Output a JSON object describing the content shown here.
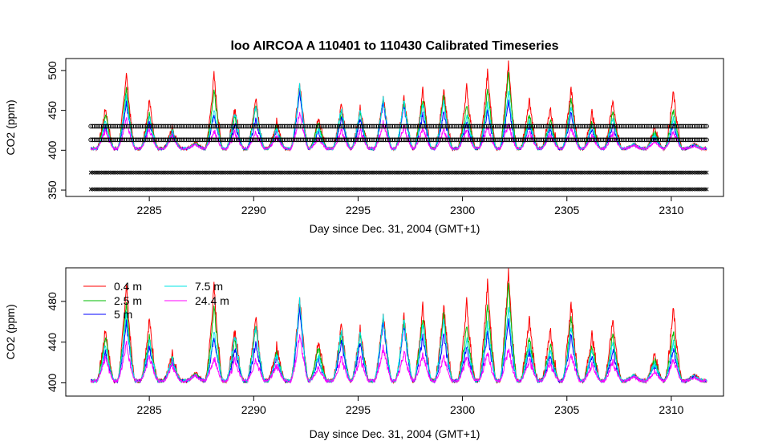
{
  "figure": {
    "title": "loo   AIRCOA  A    110401  to  110430   Calibrated Timeseries",
    "background": "#ffffff"
  },
  "chart_data": [
    {
      "type": "line",
      "title": "loo   AIRCOA  A    110401  to  110430   Calibrated Timeseries",
      "xlabel": "Day since Dec. 31, 2004 (GMT+1)",
      "ylabel": "CO2 (ppm)",
      "xlim": [
        2281,
        2312.5
      ],
      "ylim": [
        342,
        515
      ],
      "xticks": [
        "2285",
        "2290",
        "2295",
        "2300",
        "2305",
        "2310"
      ],
      "yticks": [
        "350",
        "400",
        "450",
        "500"
      ],
      "grid": false,
      "legend": "none",
      "reference_levels": [
        {
          "y": 430,
          "marker": "circle",
          "x_start": 2282.2,
          "x_end": 2311.7
        },
        {
          "y": 413,
          "marker": "circle",
          "x_start": 2282.2,
          "x_end": 2311.7
        },
        {
          "y": 372,
          "marker": "x",
          "x_start": 2282.2,
          "x_end": 2311.7
        },
        {
          "y": 351,
          "marker": "x",
          "x_start": 2282.2,
          "x_end": 2311.7
        }
      ],
      "series": [
        {
          "name": "0.4 m",
          "color": "#ff0000"
        },
        {
          "name": "2.5 m",
          "color": "#00bb00"
        },
        {
          "name": "5 m",
          "color": "#0000ff"
        },
        {
          "name": "7.5 m",
          "color": "#00e5e5"
        },
        {
          "name": "24.4 m",
          "color": "#ff00ff"
        }
      ]
    },
    {
      "type": "line",
      "title": "",
      "xlabel": "Day since Dec. 31, 2004 (GMT+1)",
      "ylabel": "CO2 (ppm)",
      "xlim": [
        2281,
        2312.5
      ],
      "ylim": [
        387,
        513
      ],
      "xticks": [
        "2285",
        "2290",
        "2295",
        "2300",
        "2305",
        "2310"
      ],
      "yticks": [
        "400",
        "440",
        "480"
      ],
      "grid": false,
      "legend": "top-left",
      "series": [
        {
          "name": "0.4 m",
          "color": "#ff0000"
        },
        {
          "name": "2.5 m",
          "color": "#00bb00"
        },
        {
          "name": "5 m",
          "color": "#0000ff"
        },
        {
          "name": "7.5 m",
          "color": "#00e5e5"
        },
        {
          "name": "24.4 m",
          "color": "#ff00ff"
        }
      ]
    }
  ],
  "daily_peaks": {
    "days": [
      2282.9,
      2283.9,
      2285.0,
      2286.1,
      2287.2,
      2288.1,
      2289.1,
      2290.1,
      2291.1,
      2292.2,
      2293.1,
      2294.2,
      2295.1,
      2296.2,
      2297.2,
      2298.1,
      2299.1,
      2300.2,
      2301.2,
      2302.2,
      2303.2,
      2304.2,
      2305.2,
      2306.2,
      2307.2,
      2308.2,
      2309.2,
      2310.1,
      2311.1
    ],
    "top": [
      455,
      500,
      465,
      430,
      412,
      497,
      455,
      468,
      438,
      487,
      445,
      460,
      455,
      470,
      467,
      478,
      480,
      482,
      500,
      510,
      465,
      455,
      480,
      450,
      465,
      410,
      430,
      475,
      410
    ],
    "ratio_25": [
      0.85,
      0.82,
      0.7,
      0.9,
      0.9,
      0.8,
      0.8,
      0.85,
      0.8,
      0.95,
      0.8,
      0.85,
      0.9,
      0.95,
      0.95,
      0.85,
      0.85,
      0.7,
      0.78,
      0.9,
      0.72,
      0.7,
      0.82,
      0.75,
      0.75,
      0.95,
      0.8,
      0.7,
      0.9
    ],
    "ratio_5": [
      0.55,
      0.6,
      0.55,
      0.75,
      0.8,
      0.48,
      0.6,
      0.6,
      0.65,
      0.85,
      0.55,
      0.7,
      0.75,
      0.9,
      0.85,
      0.6,
      0.6,
      0.45,
      0.5,
      0.55,
      0.5,
      0.5,
      0.6,
      0.55,
      0.5,
      0.9,
      0.6,
      0.45,
      0.8
    ],
    "ratio_75": [
      0.7,
      0.7,
      0.65,
      0.85,
      0.85,
      0.55,
      0.9,
      0.85,
      0.75,
      0.98,
      0.6,
      0.92,
      0.92,
      0.97,
      0.95,
      0.78,
      0.8,
      0.55,
      0.6,
      0.7,
      0.6,
      0.6,
      0.72,
      0.65,
      0.65,
      0.95,
      0.7,
      0.55,
      0.85
    ],
    "ratio_244": [
      0.45,
      0.4,
      0.4,
      0.6,
      0.7,
      0.25,
      0.4,
      0.35,
      0.45,
      0.55,
      0.3,
      0.4,
      0.45,
      0.5,
      0.45,
      0.35,
      0.3,
      0.3,
      0.3,
      0.3,
      0.35,
      0.35,
      0.35,
      0.35,
      0.3,
      0.7,
      0.35,
      0.3,
      0.6
    ],
    "baseline": 404
  },
  "legend": {
    "items": [
      {
        "label": "0.4 m",
        "color": "#ff0000"
      },
      {
        "label": "2.5 m",
        "color": "#00bb00"
      },
      {
        "label": "5 m",
        "color": "#0000ff"
      },
      {
        "label": "7.5 m",
        "color": "#00e5e5"
      },
      {
        "label": "24.4 m",
        "color": "#ff00ff"
      }
    ]
  }
}
